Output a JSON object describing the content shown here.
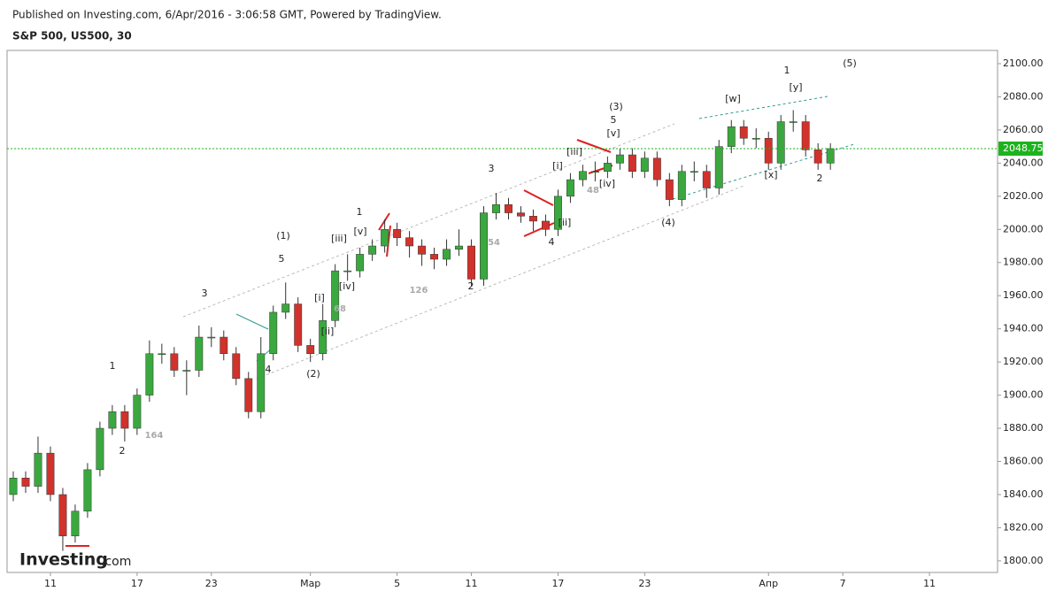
{
  "header": {
    "published": "Published on Investing.com, 6/Apr/2016 - 3:06:58 GMT, Powered by TradingView.",
    "symbol": "S&P 500, US500, 30"
  },
  "logo": "Investing",
  "logo_suffix": ".com",
  "chart_data": {
    "type": "candlestick",
    "categories": [
      null,
      null,
      null,
      "11",
      null,
      null,
      null,
      null,
      null,
      null,
      "17",
      null,
      null,
      null,
      null,
      null,
      "23",
      null,
      null,
      null,
      null,
      null,
      null,
      null,
      "Мар",
      null,
      null,
      null,
      null,
      null,
      null,
      "5",
      null,
      null,
      null,
      null,
      null,
      "11",
      null,
      null,
      null,
      null,
      null,
      null,
      "17",
      null,
      null,
      null,
      null,
      null,
      null,
      "23",
      null,
      null,
      null,
      null,
      null,
      null,
      null,
      null,
      null,
      "Апр",
      null,
      null,
      null,
      null,
      null,
      "7",
      null,
      null,
      null,
      null,
      null,
      null,
      "11",
      null,
      null,
      null,
      null,
      null
    ],
    "open": [
      1840,
      1850,
      1845,
      1865,
      1840,
      1815,
      1830,
      1855,
      1880,
      1890,
      1880,
      1900,
      1925,
      1925,
      1915,
      1915,
      1935,
      1935,
      1925,
      1910,
      1890,
      1925,
      1950,
      1955,
      1930,
      1925,
      1945,
      1975,
      1975,
      1985,
      1990,
      2000,
      1995,
      1990,
      1985,
      1982,
      1988,
      1990,
      1970,
      2010,
      2015,
      2010,
      2008,
      2005,
      2000,
      2020,
      2030,
      2035,
      2035,
      2040,
      2045,
      2035,
      2043,
      2030,
      2018,
      2035,
      2035,
      2025,
      2050,
      2062,
      2055,
      2055,
      2040,
      2065,
      2065,
      2048,
      2040,
      null,
      null,
      null,
      null,
      null,
      null,
      null,
      null,
      null,
      null,
      null,
      null,
      null
    ],
    "high": [
      1854,
      1854,
      1875,
      1869,
      1844,
      1834,
      1859,
      1884,
      1894,
      1894,
      1904,
      1933,
      1931,
      1929,
      1921,
      1942,
      1941,
      1939,
      1929,
      1914,
      1935,
      1954,
      1968,
      1959,
      1934,
      1955,
      1979,
      1985,
      1989,
      1994,
      2006,
      2004,
      1999,
      1994,
      1989,
      1994,
      2000,
      1994,
      2014,
      2022,
      2019,
      2014,
      2012,
      2009,
      2024,
      2034,
      2039,
      2041,
      2044,
      2049,
      2049,
      2047,
      2047,
      2034,
      2039,
      2041,
      2039,
      2054,
      2066,
      2066,
      2061,
      2059,
      2069,
      2072,
      2069,
      2052,
      2052,
      null,
      null,
      null,
      null,
      null,
      null,
      null,
      null,
      null,
      null,
      null,
      null,
      null
    ],
    "low": [
      1836,
      1841,
      1841,
      1836,
      1806,
      1811,
      1826,
      1851,
      1876,
      1872,
      1876,
      1896,
      1919,
      1911,
      1900,
      1911,
      1929,
      1921,
      1906,
      1886,
      1886,
      1921,
      1946,
      1926,
      1920,
      1921,
      1941,
      1969,
      1971,
      1981,
      1986,
      1990,
      1983,
      1978,
      1976,
      1978,
      1984,
      1966,
      1966,
      2006,
      2006,
      2004,
      1999,
      1996,
      1996,
      2016,
      2026,
      2029,
      2031,
      2036,
      2031,
      2031,
      2026,
      2014,
      2014,
      2029,
      2019,
      2021,
      2046,
      2051,
      2049,
      2036,
      2036,
      2059,
      2044,
      2036,
      2036,
      null,
      null,
      null,
      null,
      null,
      null,
      null,
      null,
      null,
      null,
      null,
      null,
      null
    ],
    "close": [
      1850,
      1845,
      1865,
      1840,
      1815,
      1830,
      1855,
      1880,
      1890,
      1880,
      1900,
      1925,
      1925,
      1915,
      1915,
      1935,
      1935,
      1925,
      1910,
      1890,
      1925,
      1950,
      1955,
      1930,
      1925,
      1945,
      1975,
      1975,
      1985,
      1990,
      2000,
      1995,
      1990,
      1985,
      1982,
      1988,
      1990,
      1970,
      2010,
      2015,
      2010,
      2008,
      2005,
      2000,
      2020,
      2030,
      2035,
      2035,
      2040,
      2045,
      2035,
      2043,
      2030,
      2018,
      2035,
      2035,
      2025,
      2050,
      2062,
      2055,
      2055,
      2040,
      2065,
      2065,
      2048,
      2040,
      2048.75,
      null,
      null,
      null,
      null,
      null,
      null,
      null,
      null,
      null,
      null,
      null,
      null,
      null
    ],
    "up_color": "#3aa83f",
    "down_color": "#d1322b",
    "ylim": [
      1793,
      2108
    ],
    "yticks": [
      {
        "value": 1800,
        "label": "1800.00"
      },
      {
        "value": 1820,
        "label": "1820.00"
      },
      {
        "value": 1840,
        "label": "1840.00"
      },
      {
        "value": 1860,
        "label": "1860.00"
      },
      {
        "value": 1880,
        "label": "1880.00"
      },
      {
        "value": 1900,
        "label": "1900.00"
      },
      {
        "value": 1920,
        "label": "1920.00"
      },
      {
        "value": 1940,
        "label": "1940.00"
      },
      {
        "value": 1960,
        "label": "1960.00"
      },
      {
        "value": 1980,
        "label": "1980.00"
      },
      {
        "value": 2000,
        "label": "2000.00"
      },
      {
        "value": 2020,
        "label": "2020.00"
      },
      {
        "value": 2040,
        "label": "2040.00"
      },
      {
        "value": 2060,
        "label": "2060.00"
      },
      {
        "value": 2080,
        "label": "2080.00"
      },
      {
        "value": 2100,
        "label": "2100.00"
      }
    ],
    "last_price": 2048.75,
    "last_color": "#1db31d",
    "annotations": [
      "1",
      "2",
      "164",
      "3",
      "4",
      "(1)",
      "5",
      "(2)",
      "[i]",
      "[ii]",
      "68",
      "[iii]",
      "[iv]",
      "[v]",
      "1",
      "126",
      "2",
      "3",
      "54",
      "4",
      "[ii]",
      "[i]",
      "[iii]",
      "48",
      "[iv]",
      "[v]",
      "5",
      "(3)",
      "(4)",
      "[w]",
      "[x]",
      "1",
      "[y]",
      "2",
      "(5)"
    ]
  }
}
